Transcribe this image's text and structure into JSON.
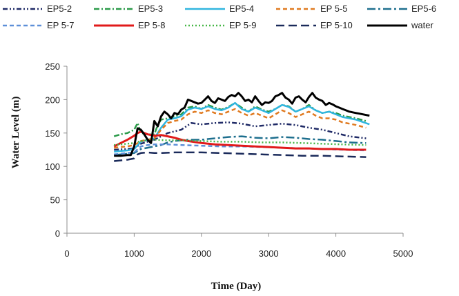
{
  "chart_data": {
    "type": "line",
    "title": "",
    "xlabel": "Time (Day)",
    "ylabel": "Water Level (m)",
    "xlim": [
      0,
      5000
    ],
    "ylim": [
      0,
      250
    ],
    "xticks": [
      0,
      1000,
      2000,
      3000,
      4000,
      5000
    ],
    "yticks": [
      0,
      50,
      100,
      150,
      200,
      250
    ],
    "grid": false,
    "legend_position": "top",
    "series": [
      {
        "name": "EP5-2",
        "color": "#1f2a66",
        "dash": "dash-dot-dot",
        "x": [
          700,
          900,
          1000,
          1100,
          1300,
          1500,
          1700,
          1850,
          2000,
          2200,
          2400,
          2600,
          2800,
          3000,
          3200,
          3400,
          3600,
          3800,
          4000,
          4200,
          4450
        ],
        "y": [
          125,
          126,
          127,
          134,
          140,
          150,
          155,
          165,
          163,
          165,
          166,
          164,
          160,
          162,
          164,
          162,
          158,
          155,
          150,
          145,
          142
        ]
      },
      {
        "name": "EP5-3",
        "color": "#2a9a48",
        "dash": "dash-dot",
        "x": [
          700,
          800,
          900,
          1000,
          1050,
          1100,
          1200,
          1300,
          1350,
          1400,
          1500,
          1600,
          1700,
          1800,
          1900,
          2000,
          2100,
          2200,
          2300,
          2400,
          2500,
          2600,
          2700,
          2800,
          2900,
          3000,
          3100,
          3200,
          3300,
          3400,
          3500,
          3600,
          3700,
          3800,
          3900,
          4000,
          4100,
          4200,
          4300,
          4450
        ],
        "y": [
          145,
          148,
          150,
          155,
          165,
          150,
          148,
          148,
          162,
          170,
          172,
          175,
          178,
          188,
          190,
          186,
          192,
          188,
          185,
          189,
          195,
          188,
          182,
          190,
          185,
          182,
          186,
          192,
          190,
          182,
          186,
          192,
          184,
          180,
          182,
          180,
          176,
          174,
          172,
          168
        ]
      },
      {
        "name": "EP5-4",
        "color": "#30b5df",
        "dash": "solid",
        "x": [
          700,
          800,
          900,
          1000,
          1100,
          1200,
          1300,
          1400,
          1500,
          1600,
          1700,
          1800,
          1900,
          2000,
          2100,
          2200,
          2300,
          2400,
          2500,
          2600,
          2700,
          2800,
          2900,
          3000,
          3100,
          3200,
          3300,
          3400,
          3500,
          3600,
          3700,
          3800,
          3900,
          4000,
          4100,
          4200,
          4300,
          4500
        ],
        "y": [
          122,
          123,
          124,
          126,
          137,
          140,
          142,
          158,
          170,
          172,
          175,
          185,
          188,
          186,
          190,
          186,
          184,
          188,
          195,
          186,
          182,
          188,
          184,
          180,
          186,
          192,
          189,
          182,
          186,
          190,
          184,
          180,
          182,
          178,
          174,
          172,
          170,
          163
        ]
      },
      {
        "name": "EP 5-5",
        "color": "#e07a20",
        "dash": "dash",
        "x": [
          700,
          800,
          900,
          1000,
          1100,
          1200,
          1300,
          1400,
          1500,
          1600,
          1700,
          1800,
          1900,
          2000,
          2100,
          2200,
          2300,
          2400,
          2500,
          2600,
          2700,
          2800,
          2900,
          3000,
          3100,
          3200,
          3300,
          3400,
          3500,
          3600,
          3700,
          3800,
          3900,
          4000,
          4100,
          4200,
          4300,
          4450
        ],
        "y": [
          128,
          129,
          130,
          132,
          138,
          140,
          142,
          155,
          165,
          168,
          170,
          178,
          182,
          180,
          184,
          180,
          178,
          182,
          186,
          180,
          176,
          180,
          176,
          172,
          178,
          184,
          180,
          174,
          178,
          182,
          176,
          172,
          172,
          170,
          166,
          164,
          162,
          158
        ]
      },
      {
        "name": "EP5-6",
        "color": "#1e6f8e",
        "dash": "long-dash-dot",
        "x": [
          700,
          800,
          900,
          1000,
          1100,
          1200,
          1300,
          1400,
          1500,
          1600,
          1800,
          2000,
          2200,
          2400,
          2600,
          2800,
          3000,
          3200,
          3400,
          3600,
          3800,
          4000,
          4200,
          4450
        ],
        "y": [
          117,
          118,
          119,
          120,
          126,
          128,
          130,
          132,
          136,
          138,
          140,
          140,
          142,
          144,
          145,
          143,
          142,
          144,
          143,
          141,
          140,
          138,
          136,
          135
        ]
      },
      {
        "name": "EP 5-7",
        "color": "#5d8fd8",
        "dash": "dash",
        "x": [
          700,
          800,
          900,
          1000,
          1100,
          1200,
          1300,
          1500,
          1700,
          2000,
          2300,
          2600,
          2900,
          3200,
          3500,
          3800,
          4100,
          4450
        ],
        "y": [
          118,
          119,
          120,
          121,
          130,
          132,
          133,
          133,
          132,
          131,
          130,
          130,
          129,
          128,
          127,
          126,
          125,
          124
        ]
      },
      {
        "name": "EP 5-8",
        "color": "#e11a1a",
        "dash": "solid",
        "x": [
          700,
          800,
          900,
          1000,
          1050,
          1100,
          1200,
          1300,
          1400,
          1500,
          1600,
          1700,
          1800,
          2000,
          2200,
          2400,
          2600,
          2800,
          3000,
          3200,
          3400,
          3600,
          3800,
          4000,
          4200,
          4450
        ],
        "y": [
          130,
          135,
          140,
          146,
          150,
          152,
          148,
          146,
          147,
          145,
          143,
          140,
          138,
          135,
          133,
          132,
          131,
          130,
          129,
          128,
          127,
          127,
          126,
          126,
          125,
          125
        ]
      },
      {
        "name": "EP 5-9",
        "color": "#44b544",
        "dash": "dot",
        "x": [
          700,
          800,
          900,
          1000,
          1100,
          1200,
          1300,
          1500,
          1700,
          2000,
          2300,
          2600,
          2900,
          3200,
          3500,
          3800,
          4100,
          4450
        ],
        "y": [
          132,
          133,
          134,
          135,
          138,
          139,
          140,
          139,
          139,
          138,
          137,
          137,
          136,
          136,
          135,
          134,
          133,
          132
        ]
      },
      {
        "name": "EP 5-10",
        "color": "#1a2a5a",
        "dash": "long-dash",
        "x": [
          700,
          800,
          900,
          1000,
          1050,
          1100,
          1200,
          1300,
          1400,
          1600,
          1800,
          2000,
          2300,
          2600,
          2900,
          3200,
          3500,
          3800,
          4100,
          4450
        ],
        "y": [
          108,
          109,
          110,
          112,
          118,
          120,
          121,
          120,
          120,
          121,
          121,
          121,
          120,
          119,
          118,
          117,
          116,
          116,
          115,
          114
        ]
      },
      {
        "name": "water",
        "color": "#000000",
        "dash": "solid",
        "x": [
          700,
          800,
          900,
          950,
          1000,
          1050,
          1100,
          1150,
          1200,
          1250,
          1300,
          1350,
          1400,
          1450,
          1500,
          1550,
          1600,
          1650,
          1700,
          1750,
          1800,
          1850,
          1900,
          1950,
          2000,
          2050,
          2100,
          2150,
          2200,
          2250,
          2300,
          2350,
          2400,
          2450,
          2500,
          2550,
          2600,
          2650,
          2700,
          2750,
          2800,
          2850,
          2900,
          2950,
          3000,
          3050,
          3100,
          3150,
          3200,
          3250,
          3300,
          3350,
          3400,
          3450,
          3500,
          3550,
          3600,
          3650,
          3700,
          3750,
          3800,
          3850,
          3900,
          3950,
          4000,
          4050,
          4100,
          4150,
          4200,
          4250,
          4300,
          4350,
          4400,
          4500
        ],
        "y": [
          116,
          116,
          117,
          117,
          130,
          157,
          155,
          148,
          140,
          135,
          168,
          160,
          175,
          182,
          178,
          172,
          180,
          178,
          185,
          188,
          200,
          198,
          196,
          194,
          195,
          200,
          205,
          198,
          195,
          202,
          200,
          198,
          204,
          207,
          205,
          210,
          205,
          198,
          200,
          196,
          205,
          198,
          192,
          196,
          195,
          198,
          205,
          207,
          210,
          203,
          200,
          194,
          203,
          205,
          200,
          196,
          204,
          210,
          203,
          200,
          198,
          192,
          195,
          193,
          190,
          188,
          186,
          184,
          182,
          181,
          180,
          179,
          178,
          176
        ]
      }
    ]
  }
}
